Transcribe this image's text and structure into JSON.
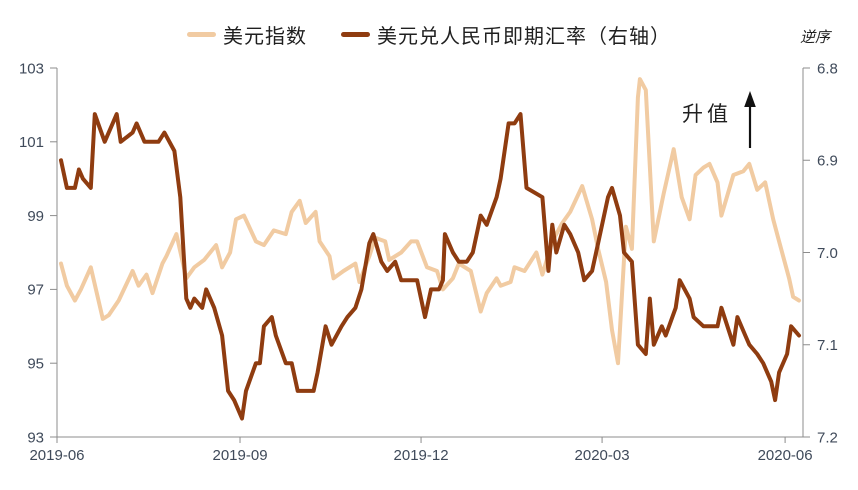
{
  "chart_data": {
    "type": "line",
    "title": "",
    "grid": false,
    "legend": {
      "position": "top-center",
      "entries": [
        "美元指数",
        "美元兑人民币即期汇率（右轴）"
      ]
    },
    "annotations": {
      "right_axis_note": "逆序",
      "appreciation_label": "升值",
      "appreciation_arrow": "up"
    },
    "colors": {
      "dxy_line": "#F1CBA2",
      "usdcny_line": "#8F3C10",
      "axis_line": "#8C8C8C",
      "tick_label": "#3F4A5A",
      "text": "#1F1F1F",
      "background": "#FFFFFF"
    },
    "x_axis": {
      "start": "2019-06-01",
      "end": "2020-06-10",
      "ticks": [
        {
          "date": "2019-06-01",
          "label": "2019-06"
        },
        {
          "date": "2019-09-01",
          "label": "2019-09"
        },
        {
          "date": "2019-12-01",
          "label": "2019-12"
        },
        {
          "date": "2020-03-01",
          "label": "2020-03"
        },
        {
          "date": "2020-06-01",
          "label": "2020-06"
        }
      ]
    },
    "left_axis": {
      "series": "美元指数",
      "range": [
        93,
        103
      ],
      "inverted": false,
      "ticks": [
        {
          "value": 103,
          "label": "103"
        },
        {
          "value": 101,
          "label": "101"
        },
        {
          "value": 99,
          "label": "99"
        },
        {
          "value": 97,
          "label": "97"
        },
        {
          "value": 95,
          "label": "95"
        },
        {
          "value": 93,
          "label": "93"
        }
      ]
    },
    "right_axis": {
      "series": "美元兑人民币即期汇率",
      "range": [
        6.8,
        7.2
      ],
      "inverted": true,
      "ticks": [
        {
          "value": 6.8,
          "label": "6.8"
        },
        {
          "value": 6.9,
          "label": "6.9"
        },
        {
          "value": 7.0,
          "label": "7.0"
        },
        {
          "value": 7.1,
          "label": "7.1"
        },
        {
          "value": 7.2,
          "label": "7.2"
        }
      ]
    },
    "series": [
      {
        "name": "美元指数",
        "axis": "left",
        "color": "#F1CBA2",
        "line_width": 4,
        "points": [
          [
            "2019-06-03",
            97.7
          ],
          [
            "2019-06-06",
            97.1
          ],
          [
            "2019-06-10",
            96.7
          ],
          [
            "2019-06-13",
            97.0
          ],
          [
            "2019-06-18",
            97.6
          ],
          [
            "2019-06-24",
            96.2
          ],
          [
            "2019-06-27",
            96.3
          ],
          [
            "2019-07-02",
            96.7
          ],
          [
            "2019-07-09",
            97.5
          ],
          [
            "2019-07-12",
            97.1
          ],
          [
            "2019-07-16",
            97.4
          ],
          [
            "2019-07-19",
            96.9
          ],
          [
            "2019-07-24",
            97.7
          ],
          [
            "2019-07-26",
            97.9
          ],
          [
            "2019-07-31",
            98.5
          ],
          [
            "2019-08-05",
            97.3
          ],
          [
            "2019-08-09",
            97.6
          ],
          [
            "2019-08-14",
            97.8
          ],
          [
            "2019-08-20",
            98.2
          ],
          [
            "2019-08-23",
            97.6
          ],
          [
            "2019-08-27",
            98.0
          ],
          [
            "2019-08-30",
            98.9
          ],
          [
            "2019-09-03",
            99.0
          ],
          [
            "2019-09-09",
            98.3
          ],
          [
            "2019-09-13",
            98.2
          ],
          [
            "2019-09-18",
            98.6
          ],
          [
            "2019-09-24",
            98.5
          ],
          [
            "2019-09-27",
            99.1
          ],
          [
            "2019-10-01",
            99.4
          ],
          [
            "2019-10-04",
            98.8
          ],
          [
            "2019-10-09",
            99.1
          ],
          [
            "2019-10-11",
            98.3
          ],
          [
            "2019-10-16",
            97.9
          ],
          [
            "2019-10-18",
            97.3
          ],
          [
            "2019-10-23",
            97.5
          ],
          [
            "2019-10-29",
            97.7
          ],
          [
            "2019-10-31",
            97.2
          ],
          [
            "2019-11-05",
            97.9
          ],
          [
            "2019-11-08",
            98.4
          ],
          [
            "2019-11-13",
            98.3
          ],
          [
            "2019-11-15",
            97.8
          ],
          [
            "2019-11-21",
            98.0
          ],
          [
            "2019-11-26",
            98.3
          ],
          [
            "2019-11-29",
            98.3
          ],
          [
            "2019-12-04",
            97.6
          ],
          [
            "2019-12-09",
            97.5
          ],
          [
            "2019-12-12",
            97.0
          ],
          [
            "2019-12-17",
            97.3
          ],
          [
            "2019-12-20",
            97.7
          ],
          [
            "2019-12-26",
            97.5
          ],
          [
            "2019-12-31",
            96.4
          ],
          [
            "2020-01-03",
            96.9
          ],
          [
            "2020-01-08",
            97.3
          ],
          [
            "2020-01-10",
            97.1
          ],
          [
            "2020-01-15",
            97.2
          ],
          [
            "2020-01-17",
            97.6
          ],
          [
            "2020-01-22",
            97.5
          ],
          [
            "2020-01-28",
            98.0
          ],
          [
            "2020-01-31",
            97.4
          ],
          [
            "2020-02-05",
            98.3
          ],
          [
            "2020-02-10",
            98.8
          ],
          [
            "2020-02-14",
            99.1
          ],
          [
            "2020-02-20",
            99.8
          ],
          [
            "2020-02-25",
            98.9
          ],
          [
            "2020-02-28",
            98.1
          ],
          [
            "2020-03-03",
            97.2
          ],
          [
            "2020-03-06",
            95.9
          ],
          [
            "2020-03-09",
            95.0
          ],
          [
            "2020-03-13",
            98.7
          ],
          [
            "2020-03-16",
            98.1
          ],
          [
            "2020-03-19",
            102.2
          ],
          [
            "2020-03-20",
            102.7
          ],
          [
            "2020-03-23",
            102.4
          ],
          [
            "2020-03-27",
            98.3
          ],
          [
            "2020-04-01",
            99.6
          ],
          [
            "2020-04-06",
            100.8
          ],
          [
            "2020-04-10",
            99.5
          ],
          [
            "2020-04-14",
            98.9
          ],
          [
            "2020-04-17",
            100.1
          ],
          [
            "2020-04-21",
            100.3
          ],
          [
            "2020-04-24",
            100.4
          ],
          [
            "2020-04-28",
            99.9
          ],
          [
            "2020-04-30",
            99.0
          ],
          [
            "2020-05-06",
            100.1
          ],
          [
            "2020-05-11",
            100.2
          ],
          [
            "2020-05-14",
            100.4
          ],
          [
            "2020-05-18",
            99.7
          ],
          [
            "2020-05-22",
            99.9
          ],
          [
            "2020-05-26",
            98.9
          ],
          [
            "2020-05-29",
            98.3
          ],
          [
            "2020-06-03",
            97.3
          ],
          [
            "2020-06-05",
            96.8
          ],
          [
            "2020-06-08",
            96.7
          ]
        ]
      },
      {
        "name": "美元兑人民币即期汇率（右轴）",
        "axis": "right",
        "color": "#8F3C10",
        "line_width": 4,
        "points": [
          [
            "2019-06-03",
            6.9
          ],
          [
            "2019-06-06",
            6.93
          ],
          [
            "2019-06-10",
            6.93
          ],
          [
            "2019-06-12",
            6.91
          ],
          [
            "2019-06-14",
            6.92
          ],
          [
            "2019-06-18",
            6.93
          ],
          [
            "2019-06-20",
            6.85
          ],
          [
            "2019-06-25",
            6.88
          ],
          [
            "2019-06-27",
            6.87
          ],
          [
            "2019-07-01",
            6.85
          ],
          [
            "2019-07-03",
            6.88
          ],
          [
            "2019-07-09",
            6.87
          ],
          [
            "2019-07-11",
            6.86
          ],
          [
            "2019-07-15",
            6.88
          ],
          [
            "2019-07-18",
            6.88
          ],
          [
            "2019-07-22",
            6.88
          ],
          [
            "2019-07-25",
            6.87
          ],
          [
            "2019-07-30",
            6.89
          ],
          [
            "2019-08-02",
            6.94
          ],
          [
            "2019-08-05",
            7.05
          ],
          [
            "2019-08-07",
            7.06
          ],
          [
            "2019-08-09",
            7.05
          ],
          [
            "2019-08-13",
            7.06
          ],
          [
            "2019-08-15",
            7.04
          ],
          [
            "2019-08-19",
            7.06
          ],
          [
            "2019-08-23",
            7.09
          ],
          [
            "2019-08-26",
            7.15
          ],
          [
            "2019-08-29",
            7.16
          ],
          [
            "2019-09-02",
            7.18
          ],
          [
            "2019-09-04",
            7.15
          ],
          [
            "2019-09-09",
            7.12
          ],
          [
            "2019-09-11",
            7.12
          ],
          [
            "2019-09-13",
            7.08
          ],
          [
            "2019-09-17",
            7.07
          ],
          [
            "2019-09-19",
            7.09
          ],
          [
            "2019-09-24",
            7.12
          ],
          [
            "2019-09-27",
            7.12
          ],
          [
            "2019-09-30",
            7.15
          ],
          [
            "2019-10-08",
            7.15
          ],
          [
            "2019-10-10",
            7.13
          ],
          [
            "2019-10-14",
            7.08
          ],
          [
            "2019-10-17",
            7.1
          ],
          [
            "2019-10-22",
            7.08
          ],
          [
            "2019-10-25",
            7.07
          ],
          [
            "2019-10-29",
            7.06
          ],
          [
            "2019-11-01",
            7.04
          ],
          [
            "2019-11-05",
            6.99
          ],
          [
            "2019-11-07",
            6.98
          ],
          [
            "2019-11-11",
            7.01
          ],
          [
            "2019-11-14",
            7.02
          ],
          [
            "2019-11-18",
            7.01
          ],
          [
            "2019-11-21",
            7.03
          ],
          [
            "2019-11-26",
            7.03
          ],
          [
            "2019-11-29",
            7.03
          ],
          [
            "2019-12-03",
            7.07
          ],
          [
            "2019-12-06",
            7.04
          ],
          [
            "2019-12-10",
            7.04
          ],
          [
            "2019-12-12",
            7.03
          ],
          [
            "2019-12-13",
            6.98
          ],
          [
            "2019-12-17",
            7.0
          ],
          [
            "2019-12-20",
            7.01
          ],
          [
            "2019-12-24",
            7.01
          ],
          [
            "2019-12-27",
            7.0
          ],
          [
            "2019-12-31",
            6.96
          ],
          [
            "2020-01-03",
            6.97
          ],
          [
            "2020-01-08",
            6.94
          ],
          [
            "2020-01-10",
            6.92
          ],
          [
            "2020-01-14",
            6.86
          ],
          [
            "2020-01-17",
            6.86
          ],
          [
            "2020-01-20",
            6.85
          ],
          [
            "2020-01-23",
            6.93
          ],
          [
            "2020-01-31",
            6.94
          ],
          [
            "2020-02-03",
            7.02
          ],
          [
            "2020-02-05",
            6.97
          ],
          [
            "2020-02-07",
            7.0
          ],
          [
            "2020-02-11",
            6.97
          ],
          [
            "2020-02-14",
            6.98
          ],
          [
            "2020-02-18",
            7.0
          ],
          [
            "2020-02-21",
            7.03
          ],
          [
            "2020-02-25",
            7.02
          ],
          [
            "2020-02-28",
            6.99
          ],
          [
            "2020-03-04",
            6.94
          ],
          [
            "2020-03-06",
            6.93
          ],
          [
            "2020-03-10",
            6.96
          ],
          [
            "2020-03-12",
            7.0
          ],
          [
            "2020-03-16",
            7.01
          ],
          [
            "2020-03-19",
            7.1
          ],
          [
            "2020-03-23",
            7.11
          ],
          [
            "2020-03-25",
            7.05
          ],
          [
            "2020-03-27",
            7.1
          ],
          [
            "2020-03-31",
            7.08
          ],
          [
            "2020-04-02",
            7.09
          ],
          [
            "2020-04-07",
            7.06
          ],
          [
            "2020-04-09",
            7.03
          ],
          [
            "2020-04-14",
            7.05
          ],
          [
            "2020-04-16",
            7.07
          ],
          [
            "2020-04-21",
            7.08
          ],
          [
            "2020-04-24",
            7.08
          ],
          [
            "2020-04-28",
            7.08
          ],
          [
            "2020-04-30",
            7.06
          ],
          [
            "2020-05-06",
            7.1
          ],
          [
            "2020-05-08",
            7.07
          ],
          [
            "2020-05-12",
            7.09
          ],
          [
            "2020-05-14",
            7.1
          ],
          [
            "2020-05-18",
            7.11
          ],
          [
            "2020-05-21",
            7.12
          ],
          [
            "2020-05-25",
            7.14
          ],
          [
            "2020-05-27",
            7.16
          ],
          [
            "2020-05-29",
            7.13
          ],
          [
            "2020-06-02",
            7.11
          ],
          [
            "2020-06-04",
            7.08
          ],
          [
            "2020-06-08",
            7.09
          ]
        ]
      }
    ]
  }
}
